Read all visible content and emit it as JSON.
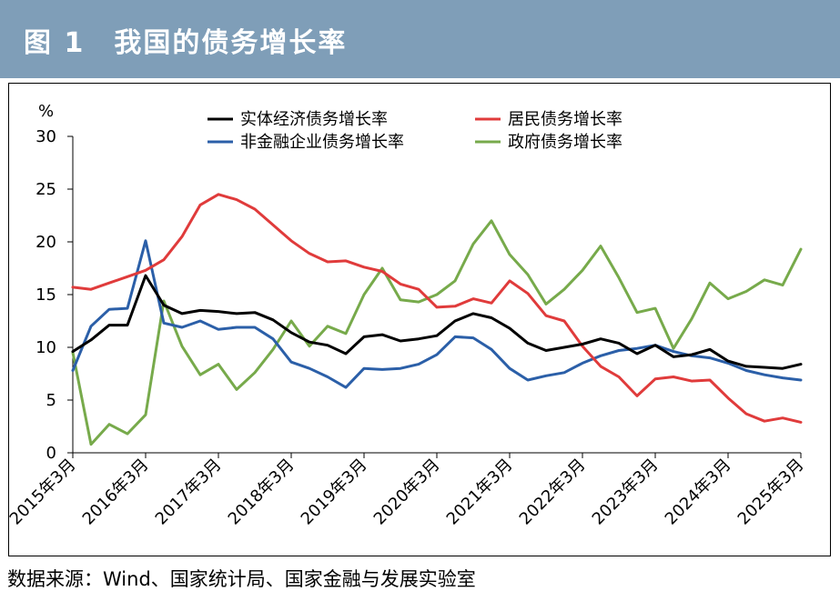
{
  "figure": {
    "title": "图 1　我国的债务增长率",
    "source": "数据来源：Wind、国家统计局、国家金融与发展实验室"
  },
  "chart_data": {
    "type": "line",
    "title": "我国的债务增长率",
    "ylabel": "%",
    "xlabel": "",
    "ylim": [
      0,
      30
    ],
    "yticks": [
      "0",
      "5",
      "10",
      "15",
      "20",
      "25",
      "30"
    ],
    "x_tick_labels": [
      "2015年3月",
      "2016年3月",
      "2017年3月",
      "2018年3月",
      "2019年3月",
      "2020年3月",
      "2021年3月",
      "2022年3月",
      "2023年3月",
      "2024年3月",
      "2025年3月"
    ],
    "legend_position": "top",
    "series": [
      {
        "name": "实体经济债务增长率",
        "color": "#000000",
        "values": [
          9.6,
          10.7,
          12.1,
          12.1,
          16.8,
          14.0,
          13.2,
          13.5,
          13.4,
          13.2,
          13.3,
          12.6,
          11.4,
          10.5,
          10.2,
          9.4,
          11.0,
          11.2,
          10.6,
          10.8,
          11.1,
          12.5,
          13.2,
          12.8,
          11.8,
          10.4,
          9.7,
          10.0,
          10.3,
          10.8,
          10.4,
          9.4,
          10.2,
          9.1,
          9.3,
          9.8,
          8.7,
          8.2,
          8.1,
          8.0,
          8.4
        ]
      },
      {
        "name": "居民债务增长率",
        "color": "#e03b3b",
        "values": [
          15.7,
          15.5,
          16.1,
          16.7,
          17.3,
          18.3,
          20.5,
          23.5,
          24.5,
          24.0,
          23.1,
          21.6,
          20.1,
          18.9,
          18.1,
          18.2,
          17.6,
          17.2,
          16.0,
          15.5,
          13.8,
          13.9,
          14.6,
          14.2,
          16.3,
          15.1,
          13.0,
          12.5,
          10.1,
          8.2,
          7.2,
          5.4,
          7.0,
          7.2,
          6.8,
          6.9,
          5.2,
          3.7,
          3.0,
          3.3,
          2.9
        ]
      },
      {
        "name": "非金融企业债务增长率",
        "color": "#2b5fa8",
        "values": [
          7.8,
          12.0,
          13.6,
          13.7,
          20.1,
          12.3,
          11.9,
          12.5,
          11.7,
          11.9,
          11.9,
          10.8,
          8.6,
          8.0,
          7.2,
          6.2,
          8.0,
          7.9,
          8.0,
          8.4,
          9.3,
          11.0,
          10.9,
          9.8,
          8.0,
          6.9,
          7.3,
          7.6,
          8.5,
          9.2,
          9.7,
          9.9,
          10.2,
          9.6,
          9.2,
          9.0,
          8.5,
          7.8,
          7.4,
          7.1,
          6.9
        ]
      },
      {
        "name": "政府债务增长率",
        "color": "#77aa4b",
        "values": [
          9.5,
          0.8,
          2.7,
          1.8,
          3.6,
          14.4,
          10.1,
          7.4,
          8.4,
          6.0,
          7.6,
          9.8,
          12.5,
          10.1,
          12.0,
          11.3,
          15.0,
          17.5,
          14.5,
          14.3,
          15.0,
          16.3,
          19.8,
          22.0,
          18.8,
          16.9,
          14.1,
          15.5,
          17.3,
          19.6,
          16.6,
          13.3,
          13.7,
          9.9,
          12.7,
          16.1,
          14.6,
          15.3,
          16.4,
          15.9,
          19.3
        ]
      }
    ]
  }
}
